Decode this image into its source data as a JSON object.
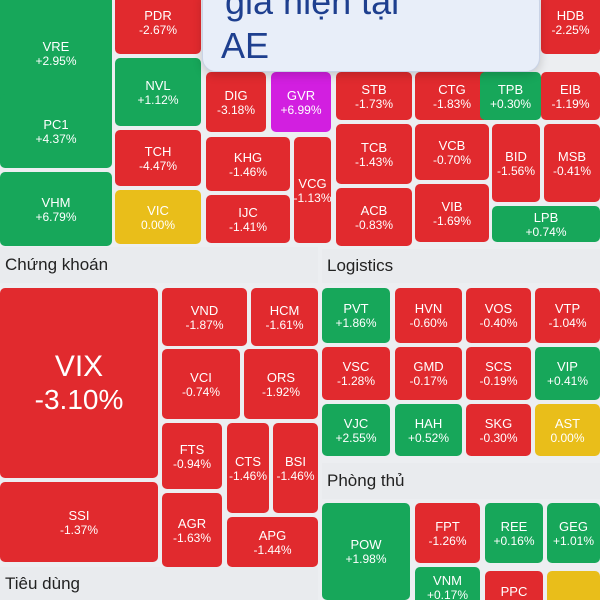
{
  "tiles": [
    {
      "sym": "VRE",
      "pct": "+2.95%",
      "color": "green"
    },
    {
      "sym": "PDR",
      "pct": "-2.67%",
      "color": "red"
    },
    {
      "sym": "HDB",
      "pct": "-2.25%",
      "color": "red"
    },
    {
      "sym": "NVL",
      "pct": "+1.12%",
      "color": "green"
    },
    {
      "sym": "PC1",
      "pct": "+4.37%",
      "color": "green"
    },
    {
      "sym": "DIG",
      "pct": "-3.18%",
      "color": "red"
    },
    {
      "sym": "GVR",
      "pct": "+6.99%",
      "color": "purple"
    },
    {
      "sym": "STB",
      "pct": "-1.73%",
      "color": "red"
    },
    {
      "sym": "CTG",
      "pct": "-1.83%",
      "color": "red"
    },
    {
      "sym": "TPB",
      "pct": "+0.30%",
      "color": "green"
    },
    {
      "sym": "EIB",
      "pct": "-1.19%",
      "color": "red"
    },
    {
      "sym": "TCH",
      "pct": "-4.47%",
      "color": "red"
    },
    {
      "sym": "KHG",
      "pct": "-1.46%",
      "color": "red"
    },
    {
      "sym": "VCG",
      "pct": "-1.13%",
      "color": "red"
    },
    {
      "sym": "TCB",
      "pct": "-1.43%",
      "color": "red"
    },
    {
      "sym": "VCB",
      "pct": "-0.70%",
      "color": "red"
    },
    {
      "sym": "BID",
      "pct": "-1.56%",
      "color": "red"
    },
    {
      "sym": "MSB",
      "pct": "-0.41%",
      "color": "red"
    },
    {
      "sym": "VHM",
      "pct": "+6.79%",
      "color": "green"
    },
    {
      "sym": "VIC",
      "pct": "0.00%",
      "color": "yellow"
    },
    {
      "sym": "IJC",
      "pct": "-1.41%",
      "color": "red"
    },
    {
      "sym": "ACB",
      "pct": "-0.83%",
      "color": "red"
    },
    {
      "sym": "VIB",
      "pct": "-1.69%",
      "color": "red"
    },
    {
      "sym": "LPB",
      "pct": "+0.74%",
      "color": "green"
    },
    {
      "sym": "VIX",
      "pct": "-3.10%",
      "color": "red"
    },
    {
      "sym": "VND",
      "pct": "-1.87%",
      "color": "red"
    },
    {
      "sym": "HCM",
      "pct": "-1.61%",
      "color": "red"
    },
    {
      "sym": "VCI",
      "pct": "-0.74%",
      "color": "red"
    },
    {
      "sym": "ORS",
      "pct": "-1.92%",
      "color": "red"
    },
    {
      "sym": "FTS",
      "pct": "-0.94%",
      "color": "red"
    },
    {
      "sym": "CTS",
      "pct": "-1.46%",
      "color": "red"
    },
    {
      "sym": "BSI",
      "pct": "-1.46%",
      "color": "red"
    },
    {
      "sym": "SSI",
      "pct": "-1.37%",
      "color": "red"
    },
    {
      "sym": "AGR",
      "pct": "-1.63%",
      "color": "red"
    },
    {
      "sym": "APG",
      "pct": "-1.44%",
      "color": "red"
    },
    {
      "sym": "PVT",
      "pct": "+1.86%",
      "color": "green"
    },
    {
      "sym": "HVN",
      "pct": "-0.60%",
      "color": "red"
    },
    {
      "sym": "VOS",
      "pct": "-0.40%",
      "color": "red"
    },
    {
      "sym": "VTP",
      "pct": "-1.04%",
      "color": "red"
    },
    {
      "sym": "VSC",
      "pct": "-1.28%",
      "color": "red"
    },
    {
      "sym": "GMD",
      "pct": "-0.17%",
      "color": "red"
    },
    {
      "sym": "SCS",
      "pct": "-0.19%",
      "color": "red"
    },
    {
      "sym": "VIP",
      "pct": "+0.41%",
      "color": "green"
    },
    {
      "sym": "VJC",
      "pct": "+2.55%",
      "color": "green"
    },
    {
      "sym": "HAH",
      "pct": "+0.52%",
      "color": "green"
    },
    {
      "sym": "SKG",
      "pct": "-0.30%",
      "color": "red"
    },
    {
      "sym": "AST",
      "pct": "0.00%",
      "color": "yellow"
    },
    {
      "sym": "POW",
      "pct": "+1.98%",
      "color": "green"
    },
    {
      "sym": "FPT",
      "pct": "-1.26%",
      "color": "red"
    },
    {
      "sym": "REE",
      "pct": "+0.16%",
      "color": "green"
    },
    {
      "sym": "GEG",
      "pct": "+1.01%",
      "color": "green"
    },
    {
      "sym": "VNM",
      "pct": "+0.17%",
      "color": "green"
    },
    {
      "sym": "PPC",
      "pct": "",
      "color": "red"
    },
    {
      "sym": "",
      "pct": "",
      "color": "yellow"
    }
  ],
  "sections": {
    "chung_khoan": "Chứng khoán",
    "logistics": "Logistics",
    "phong_thu": "Phòng thủ",
    "tieu_dung": "Tiêu dùng"
  },
  "overlay": {
    "line1": "giá hiện tại",
    "line2": "AE"
  },
  "colors": {
    "red": "#e12a2e",
    "green": "#17a75a",
    "yellow": "#e9be1a",
    "purple": "#d21fe0"
  }
}
